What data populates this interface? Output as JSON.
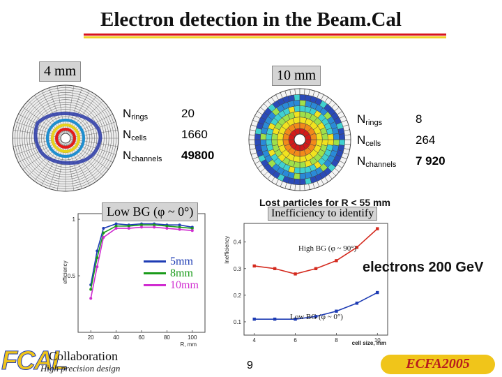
{
  "title": "Electron detection in the Beam.Cal",
  "colors": {
    "rule_red": "#d8141e",
    "rule_yellow": "#f1d12a",
    "accent_blue": "#1e3cb4",
    "accent_green": "#1a9b1a",
    "accent_magenta": "#d02cd0"
  },
  "left_label": "4 mm",
  "right_label": "10 mm",
  "table_4mm": {
    "rows": [
      {
        "key": "N",
        "sub": "rings",
        "value": "20"
      },
      {
        "key": "N",
        "sub": "cells",
        "value": "1660"
      },
      {
        "key": "N",
        "sub": "channels",
        "value": "49800"
      }
    ]
  },
  "table_10mm": {
    "rows": [
      {
        "key": "N",
        "sub": "rings",
        "value": "8"
      },
      {
        "key": "N",
        "sub": "cells",
        "value": "264"
      },
      {
        "key": "N",
        "sub": "channels",
        "value": "7 920"
      }
    ]
  },
  "low_bg_label": "Low BG (φ ~ 0°)",
  "lost_particles": "Lost particles for R < 55 mm",
  "inefficiency_label": "Inefficiency to identify",
  "electrons_label": "electrons 200 GeV",
  "legend": [
    "5mm",
    "8mm",
    "10mm"
  ],
  "left_plot": {
    "ylabel": "efficiency",
    "xlabel": "R, mm",
    "x_ticks": [
      "20",
      "40",
      "60",
      "80",
      "100"
    ],
    "y_ticks": [
      "1",
      "0.5"
    ]
  },
  "right_plot": {
    "ylabel": "Inefficiency",
    "xlabel": "cell size, mm",
    "x_ticks": [
      "4",
      "6",
      "8",
      "10"
    ],
    "y_ticks": [
      "0.4",
      "0.3",
      "0.2",
      "0.1"
    ],
    "high_bg_label": "High BG (φ ~ 90°)",
    "low_bg_label": "Low BG (φ ~ 0°)"
  },
  "chart_data": [
    {
      "type": "line",
      "xlabel": "R, mm",
      "ylabel": "efficiency",
      "xlim": [
        10,
        110
      ],
      "ylim": [
        0.0,
        1.05
      ],
      "series": [
        {
          "name": "5mm",
          "color": "#1e3cb4",
          "x": [
            20,
            25,
            30,
            40,
            50,
            60,
            70,
            80,
            90,
            100
          ],
          "y": [
            0.42,
            0.72,
            0.92,
            0.96,
            0.95,
            0.96,
            0.96,
            0.95,
            0.95,
            0.93
          ]
        },
        {
          "name": "8mm",
          "color": "#1a9b1a",
          "x": [
            20,
            25,
            30,
            40,
            50,
            60,
            70,
            80,
            90,
            100
          ],
          "y": [
            0.38,
            0.66,
            0.88,
            0.94,
            0.94,
            0.95,
            0.95,
            0.94,
            0.93,
            0.92
          ]
        },
        {
          "name": "10mm",
          "color": "#d02cd0",
          "x": [
            20,
            25,
            30,
            40,
            50,
            60,
            70,
            80,
            90,
            100
          ],
          "y": [
            0.3,
            0.58,
            0.84,
            0.92,
            0.92,
            0.93,
            0.93,
            0.92,
            0.91,
            0.9
          ]
        }
      ]
    },
    {
      "type": "line",
      "xlabel": "cell size, mm",
      "ylabel": "Inefficiency",
      "xlim": [
        3.5,
        10.5
      ],
      "ylim": [
        0.05,
        0.47
      ],
      "series": [
        {
          "name": "High BG (φ ~ 90°)",
          "color": "#d42a1e",
          "x": [
            4,
            5,
            6,
            7,
            8,
            9,
            10
          ],
          "y": [
            0.31,
            0.3,
            0.28,
            0.3,
            0.33,
            0.38,
            0.45
          ]
        },
        {
          "name": "Low BG (φ ~ 0°)",
          "color": "#1e3cb4",
          "x": [
            4,
            5,
            6,
            7,
            8,
            9,
            10
          ],
          "y": [
            0.11,
            0.11,
            0.11,
            0.12,
            0.14,
            0.17,
            0.21
          ]
        }
      ]
    }
  ],
  "footer": {
    "logo": "FCAL",
    "collaboration": "Collaboration",
    "tagline": "High precision design",
    "page_number": "9",
    "conference": "ECFA2005"
  }
}
